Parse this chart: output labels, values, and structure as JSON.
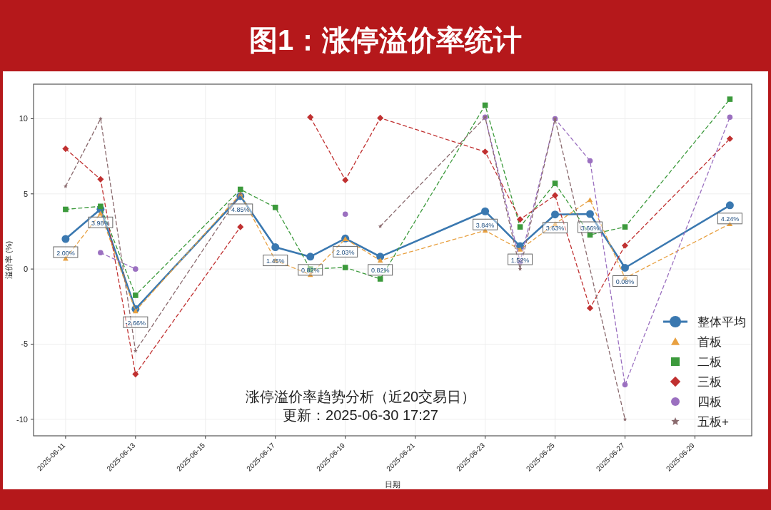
{
  "chart_data": {
    "type": "line",
    "title": "图1：涨停溢价率统计",
    "xlabel": "日期",
    "ylabel": "溢价率 (%)",
    "x": [
      "2025-06-11",
      "2025-06-12",
      "2025-06-13",
      "2025-06-16",
      "2025-06-17",
      "2025-06-18",
      "2025-06-19",
      "2025-06-20",
      "2025-06-23",
      "2025-06-24",
      "2025-06-25",
      "2025-06-26",
      "2025-06-27",
      "2025-06-30"
    ],
    "xlim": [
      "2025-06-10T02:00",
      "2025-06-30T15:00"
    ],
    "xticks": [
      {
        "value": "2025-06-11",
        "label": "2025-06-11"
      },
      {
        "value": "2025-06-13",
        "label": "2025-06-13"
      },
      {
        "value": "2025-06-15",
        "label": "2025-06-15"
      },
      {
        "value": "2025-06-17",
        "label": "2025-06-17"
      },
      {
        "value": "2025-06-19",
        "label": "2025-06-19"
      },
      {
        "value": "2025-06-21",
        "label": "2025-06-21"
      },
      {
        "value": "2025-06-23",
        "label": "2025-06-23"
      },
      {
        "value": "2025-06-25",
        "label": "2025-06-25"
      },
      {
        "value": "2025-06-27",
        "label": "2025-06-27"
      },
      {
        "value": "2025-06-29",
        "label": "2025-06-29"
      }
    ],
    "ylim": [
      -11.1,
      12.3
    ],
    "yticks": [
      -10,
      -5,
      0,
      5,
      10
    ],
    "grid": true,
    "legend": "bottom right",
    "series": [
      {
        "name": "整体平均",
        "color": "#3a78b0",
        "marker": "circle",
        "line_style": "solid",
        "values": [
          2.0,
          3.98,
          -2.66,
          4.85,
          1.45,
          0.82,
          2.03,
          0.82,
          3.84,
          1.52,
          3.63,
          3.66,
          0.08,
          4.24
        ],
        "value_labels": [
          "2.00%",
          "3.98%",
          "-2.66%",
          "4.85%",
          "1.45%",
          "0.82%",
          "2.03%",
          "0.82%",
          "3.84%",
          "1.52%",
          "3.63%",
          "3.66%",
          "0.08%",
          "4.24%"
        ]
      },
      {
        "name": "首板",
        "color": "#e8a040",
        "marker": "triangle",
        "line_style": "dashed",
        "values": [
          0.7,
          3.7,
          -2.8,
          5.0,
          0.57,
          -0.38,
          2.0,
          0.57,
          2.56,
          1.3,
          3.0,
          4.6,
          -0.6,
          3.0
        ]
      },
      {
        "name": "二板",
        "color": "#3c9a3c",
        "marker": "square",
        "line_style": "dashed",
        "values": [
          3.97,
          4.17,
          -1.75,
          5.3,
          4.1,
          0.0,
          0.1,
          -0.66,
          10.9,
          2.8,
          5.7,
          2.27,
          2.8,
          11.3
        ]
      },
      {
        "name": "三板",
        "color": "#c03030",
        "marker": "diamond",
        "line_style": "dashed",
        "values": [
          8.0,
          5.97,
          -7.0,
          2.8,
          null,
          10.1,
          5.92,
          10.05,
          7.8,
          3.3,
          4.9,
          -2.6,
          1.56,
          8.67
        ]
      },
      {
        "name": "四板",
        "color": "#9b70c0",
        "marker": "circle",
        "line_style": "dashed",
        "values": [
          null,
          1.09,
          0.0,
          null,
          null,
          null,
          3.65,
          null,
          10.1,
          0.47,
          10.0,
          7.2,
          -7.7,
          10.1
        ]
      },
      {
        "name": "五板+",
        "color": "#8a6a6e",
        "marker": "star",
        "line_style": "dashed",
        "x": [
          "2025-06-11",
          "2025-06-12",
          "2025-06-13",
          "2025-06-16",
          "2025-06-17",
          "2025-06-20",
          "2025-06-23",
          "2025-06-24",
          "2025-06-25",
          "2025-06-27"
        ],
        "values": [
          5.5,
          10.0,
          -5.45,
          5.0,
          null,
          2.84,
          10.1,
          0.0,
          10.0,
          -10.0
        ]
      }
    ],
    "annotations": [
      "涨停溢价率趋势分析（近20交易日）",
      "更新：2025-06-30 17:27"
    ]
  }
}
